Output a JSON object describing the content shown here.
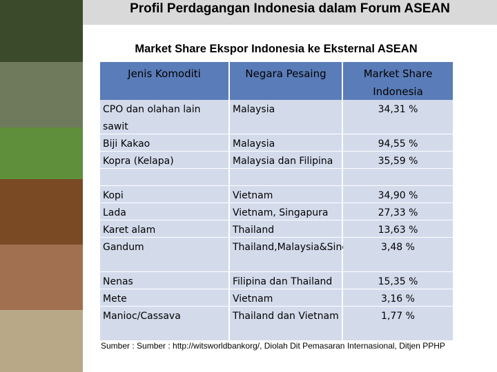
{
  "title": "Profil Perdagangan Indonesia dalam Forum ASEAN",
  "subtitle": "Market Share Ekspor Indonesia ke Eksternal ASEAN",
  "table": {
    "header": [
      "Jenis Komoditi",
      "Negara Pesaing",
      "Market Share Indonesia"
    ],
    "rows": [
      [
        "CPO dan olahan lain sawit",
        "Malaysia",
        "34,31 %"
      ],
      [
        "Biji Kakao",
        "Malaysia",
        "94,55 %"
      ],
      [
        "Kopra (Kelapa)",
        "Malaysia dan Filipina",
        "35,59 %"
      ],
      [
        "Kopi",
        "Vietnam",
        "34,90 %"
      ],
      [
        "Lada",
        "Vietnam, Singapura",
        "27,33 %"
      ],
      [
        "Karet alam",
        "Thailand",
        "13,63 %"
      ],
      [
        "Gandum",
        "Thailand,Malaysia&Singapura",
        "3,48 %"
      ],
      [
        "Nenas",
        "Filipina dan Thailand",
        "15,35 %"
      ],
      [
        "Mete",
        "Vietnam",
        "3,16 %"
      ],
      [
        "Manioc/Cassava",
        "Thailand dan Vietnam",
        "1,77 %"
      ]
    ]
  },
  "source": "Sumber : Sumber : http://witsworldbankorg/, Diolah Dit Pemasaran Internasional, Ditjen PPHP"
}
